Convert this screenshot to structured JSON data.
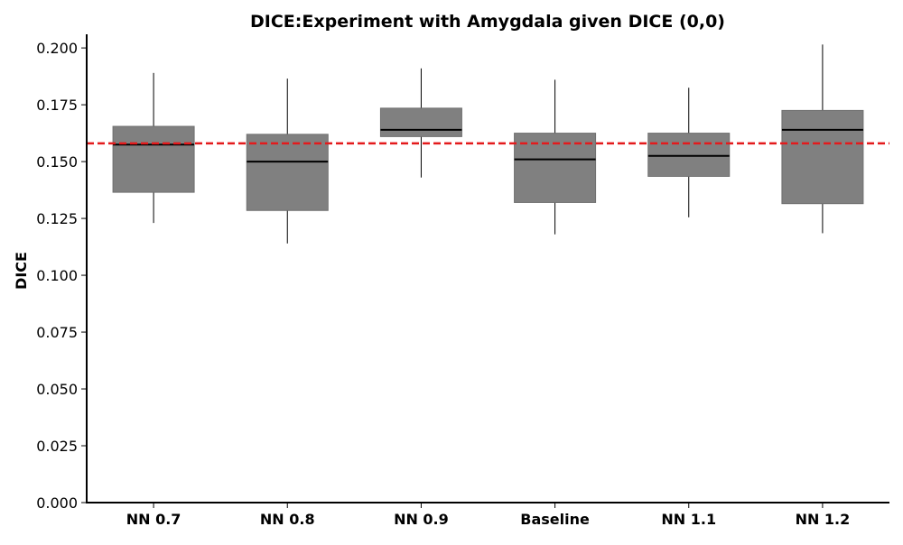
{
  "chart_data": {
    "type": "box",
    "title": "DICE:Experiment with Amygdala given DICE (0,0)",
    "xlabel": "",
    "ylabel": "DICE",
    "ylim": [
      0,
      0.206
    ],
    "yticks": [
      "0.000",
      "0.025",
      "0.050",
      "0.075",
      "0.100",
      "0.125",
      "0.150",
      "0.175",
      "0.200"
    ],
    "categories": [
      "NN 0.7",
      "NN 0.8",
      "NN 0.9",
      "Baseline",
      "NN 1.1",
      "NN 1.2"
    ],
    "boxes": [
      {
        "whisker_low": 0.123,
        "q1": 0.1365,
        "median": 0.1575,
        "q3": 0.1655,
        "whisker_high": 0.189
      },
      {
        "whisker_low": 0.114,
        "q1": 0.1285,
        "median": 0.15,
        "q3": 0.162,
        "whisker_high": 0.1865
      },
      {
        "whisker_low": 0.143,
        "q1": 0.161,
        "median": 0.164,
        "q3": 0.1735,
        "whisker_high": 0.191
      },
      {
        "whisker_low": 0.118,
        "q1": 0.132,
        "median": 0.151,
        "q3": 0.1625,
        "whisker_high": 0.186
      },
      {
        "whisker_low": 0.1255,
        "q1": 0.1435,
        "median": 0.1525,
        "q3": 0.1625,
        "whisker_high": 0.1825
      },
      {
        "whisker_low": 0.1185,
        "q1": 0.1315,
        "median": 0.164,
        "q3": 0.1725,
        "whisker_high": 0.2015
      }
    ],
    "reference_line": {
      "value": 0.158,
      "color": "#e41a1c",
      "style": "dashed"
    },
    "box_color": "#808080",
    "grid": false,
    "legend": "none"
  }
}
